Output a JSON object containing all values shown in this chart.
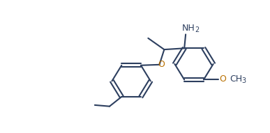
{
  "background_color": "#ffffff",
  "line_color": "#2d3f5f",
  "line_width": 1.5,
  "text_color": "#2d3f5f",
  "O_color": "#b87000",
  "font_size": 9,
  "fig_width": 3.87,
  "fig_height": 1.91,
  "dpi": 100,
  "xlim": [
    0,
    10
  ],
  "ylim": [
    0,
    5.2
  ]
}
